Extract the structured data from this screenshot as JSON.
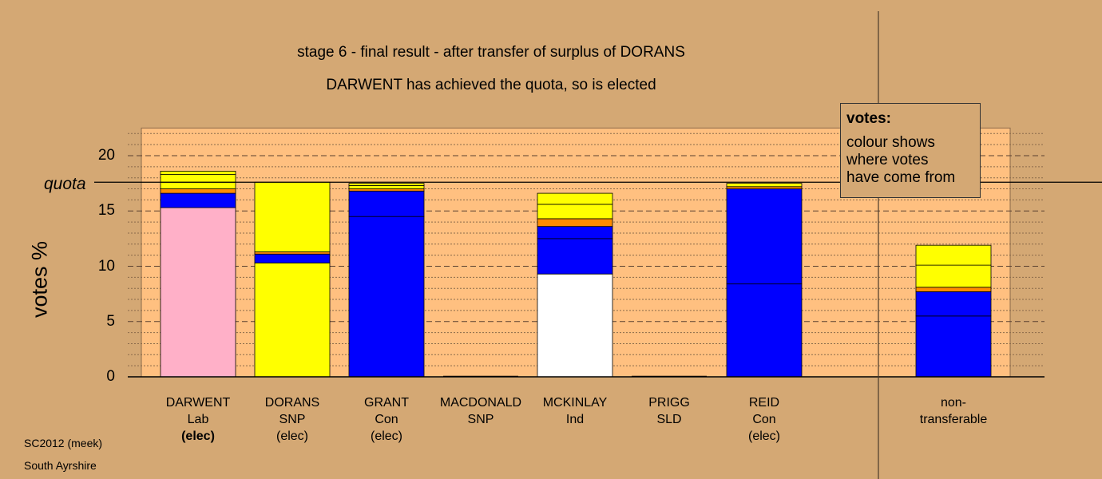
{
  "chart_data": {
    "type": "bar",
    "stacked": true,
    "title": "stage 6 - final result - after transfer of surplus of DORANS",
    "subtitle": "DARWENT has achieved the quota, so is elected",
    "ylabel": "votes %",
    "ylim": [
      0,
      22.5
    ],
    "yticks": [
      0,
      5,
      10,
      15,
      20
    ],
    "quota": 17.6,
    "quota_label": "quota",
    "grid": "horizontal dotted",
    "categories": [
      {
        "name": "DARWENT",
        "party": "Lab",
        "status": "(elec)",
        "status_bold": true
      },
      {
        "name": "DORANS",
        "party": "SNP",
        "status": "(elec)",
        "status_bold": false
      },
      {
        "name": "GRANT",
        "party": "Con",
        "status": "(elec)",
        "status_bold": false
      },
      {
        "name": "MACDONALD",
        "party": "SNP",
        "status": "",
        "status_bold": false
      },
      {
        "name": "MCKINLAY",
        "party": "Ind",
        "status": "",
        "status_bold": false
      },
      {
        "name": "PRIGG",
        "party": "SLD",
        "status": "",
        "status_bold": false
      },
      {
        "name": "REID",
        "party": "Con",
        "status": "(elec)",
        "status_bold": false
      }
    ],
    "bars": [
      [
        {
          "value": 15.3,
          "color": "#ffb0c8"
        },
        {
          "value": 1.3,
          "color": "#0000ff"
        },
        {
          "value": 0.4,
          "color": "#ff8c00"
        },
        {
          "value": 0.6,
          "color": "#ffff00"
        },
        {
          "value": 0.7,
          "color": "#ffff00"
        },
        {
          "value": 0.3,
          "color": "#ffff00"
        }
      ],
      [
        {
          "value": 10.3,
          "color": "#ffff00"
        },
        {
          "value": 0.8,
          "color": "#0000ff"
        },
        {
          "value": 0.2,
          "color": "#ff8c00"
        },
        {
          "value": 6.3,
          "color": "#ffff00"
        }
      ],
      [
        {
          "value": 14.5,
          "color": "#0000ff"
        },
        {
          "value": 2.3,
          "color": "#0000ff"
        },
        {
          "value": 0.2,
          "color": "#ff8c00"
        },
        {
          "value": 0.3,
          "color": "#ffff00"
        },
        {
          "value": 0.2,
          "color": "#ffff00"
        }
      ],
      [],
      [
        {
          "value": 9.3,
          "color": "#ffffff"
        },
        {
          "value": 3.2,
          "color": "#0000ff"
        },
        {
          "value": 1.1,
          "color": "#0000ff"
        },
        {
          "value": 0.7,
          "color": "#ff8c00"
        },
        {
          "value": 1.3,
          "color": "#ffff00"
        },
        {
          "value": 1.0,
          "color": "#ffff00"
        }
      ],
      [],
      [
        {
          "value": 8.4,
          "color": "#0000ff"
        },
        {
          "value": 8.6,
          "color": "#0000ff"
        },
        {
          "value": 0.2,
          "color": "#ff8c00"
        },
        {
          "value": 0.3,
          "color": "#ffff00"
        }
      ]
    ],
    "nontransferable": {
      "label": "non-transferable",
      "label_line1": "non-",
      "label_line2": "transferable",
      "segments": [
        {
          "value": 5.5,
          "color": "#0000ff"
        },
        {
          "value": 2.2,
          "color": "#0000ff"
        },
        {
          "value": 0.4,
          "color": "#ff8c00"
        },
        {
          "value": 2.0,
          "color": "#ffff00"
        },
        {
          "value": 1.8,
          "color": "#ffff00"
        }
      ]
    }
  },
  "legend": {
    "title": "votes:",
    "lines": [
      "colour shows",
      "where votes",
      "have come from"
    ]
  },
  "footer": {
    "line1": "SC2012 (meek)",
    "line2": "South Ayrshire"
  }
}
